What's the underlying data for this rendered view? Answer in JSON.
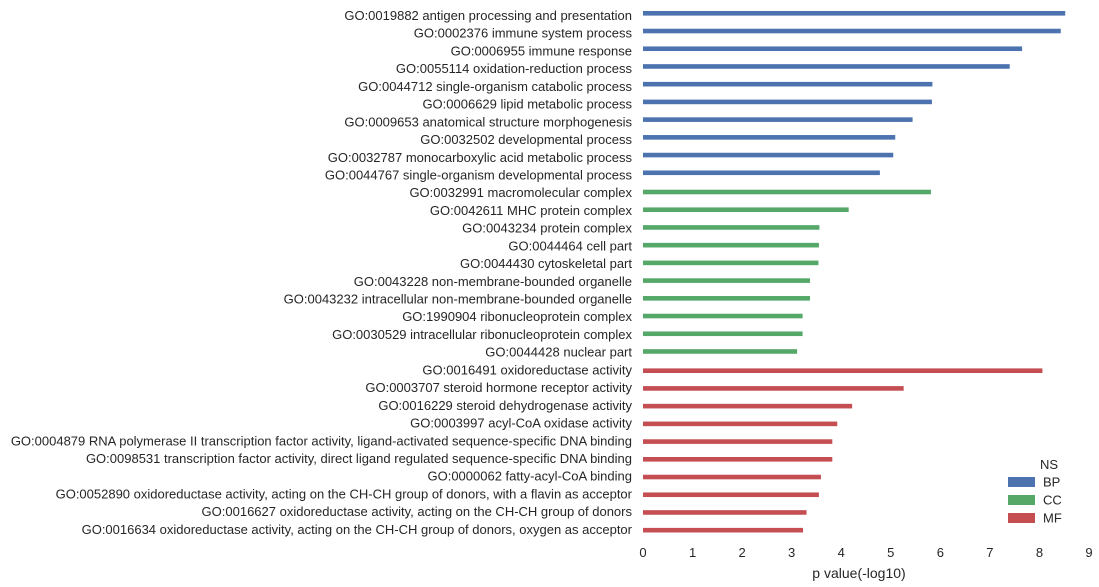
{
  "chart_data": {
    "type": "bar",
    "orientation": "horizontal",
    "title": "",
    "xlabel": "p value(-log10)",
    "ylabel": "",
    "xlim": [
      0,
      9
    ],
    "xticks": [
      "0",
      "1",
      "2",
      "3",
      "4",
      "5",
      "6",
      "7",
      "8",
      "9"
    ],
    "grid": false,
    "legend": {
      "title": "NS",
      "placement": "bottom-right",
      "entries": [
        {
          "name": "BP",
          "color": "#4c72b0"
        },
        {
          "name": "CC",
          "color": "#55a868"
        },
        {
          "name": "MF",
          "color": "#c44e52"
        }
      ]
    },
    "bars": [
      {
        "label": "GO:0019882 antigen processing and presentation",
        "value": 8.52,
        "group": "BP"
      },
      {
        "label": "GO:0002376 immune system process",
        "value": 8.43,
        "group": "BP"
      },
      {
        "label": "GO:0006955 immune response",
        "value": 7.65,
        "group": "BP"
      },
      {
        "label": "GO:0055114 oxidation-reduction process",
        "value": 7.4,
        "group": "BP"
      },
      {
        "label": "GO:0044712 single-organism catabolic process",
        "value": 5.84,
        "group": "BP"
      },
      {
        "label": "GO:0006629 lipid metabolic process",
        "value": 5.83,
        "group": "BP"
      },
      {
        "label": "GO:0009653 anatomical structure morphogenesis",
        "value": 5.44,
        "group": "BP"
      },
      {
        "label": "GO:0032502 developmental process",
        "value": 5.09,
        "group": "BP"
      },
      {
        "label": "GO:0032787 monocarboxylic acid metabolic process",
        "value": 5.05,
        "group": "BP"
      },
      {
        "label": "GO:0044767 single-organism developmental process",
        "value": 4.78,
        "group": "BP"
      },
      {
        "label": "GO:0032991 macromolecular complex",
        "value": 5.81,
        "group": "CC"
      },
      {
        "label": "GO:0042611 MHC protein complex",
        "value": 4.15,
        "group": "CC"
      },
      {
        "label": "GO:0043234 protein complex",
        "value": 3.56,
        "group": "CC"
      },
      {
        "label": "GO:0044464 cell part",
        "value": 3.55,
        "group": "CC"
      },
      {
        "label": "GO:0044430 cytoskeletal part",
        "value": 3.54,
        "group": "CC"
      },
      {
        "label": "GO:0043228 non-membrane-bounded organelle",
        "value": 3.37,
        "group": "CC"
      },
      {
        "label": "GO:0043232 intracellular non-membrane-bounded organelle",
        "value": 3.37,
        "group": "CC"
      },
      {
        "label": "GO:1990904 ribonucleoprotein complex",
        "value": 3.22,
        "group": "CC"
      },
      {
        "label": "GO:0030529 intracellular ribonucleoprotein complex",
        "value": 3.22,
        "group": "CC"
      },
      {
        "label": "GO:0044428 nuclear part",
        "value": 3.11,
        "group": "CC"
      },
      {
        "label": "GO:0016491 oxidoreductase activity",
        "value": 8.06,
        "group": "MF"
      },
      {
        "label": "GO:0003707 steroid hormone receptor activity",
        "value": 5.26,
        "group": "MF"
      },
      {
        "label": "GO:0016229 steroid dehydrogenase activity",
        "value": 4.22,
        "group": "MF"
      },
      {
        "label": "GO:0003997 acyl-CoA oxidase activity",
        "value": 3.92,
        "group": "MF"
      },
      {
        "label": "GO:0004879 RNA polymerase II transcription factor activity, ligand-activated sequence-specific DNA binding",
        "value": 3.82,
        "group": "MF"
      },
      {
        "label": "GO:0098531 transcription factor activity, direct ligand regulated sequence-specific DNA binding",
        "value": 3.82,
        "group": "MF"
      },
      {
        "label": "GO:0000062 fatty-acyl-CoA binding",
        "value": 3.59,
        "group": "MF"
      },
      {
        "label": "GO:0052890 oxidoreductase activity, acting on the CH-CH group of donors, with a flavin as acceptor",
        "value": 3.55,
        "group": "MF"
      },
      {
        "label": "GO:0016627 oxidoreductase activity, acting on the CH-CH group of donors",
        "value": 3.3,
        "group": "MF"
      },
      {
        "label": "GO:0016634 oxidoreductase activity, acting on the CH-CH group of donors, oxygen as acceptor",
        "value": 3.23,
        "group": "MF"
      }
    ]
  }
}
